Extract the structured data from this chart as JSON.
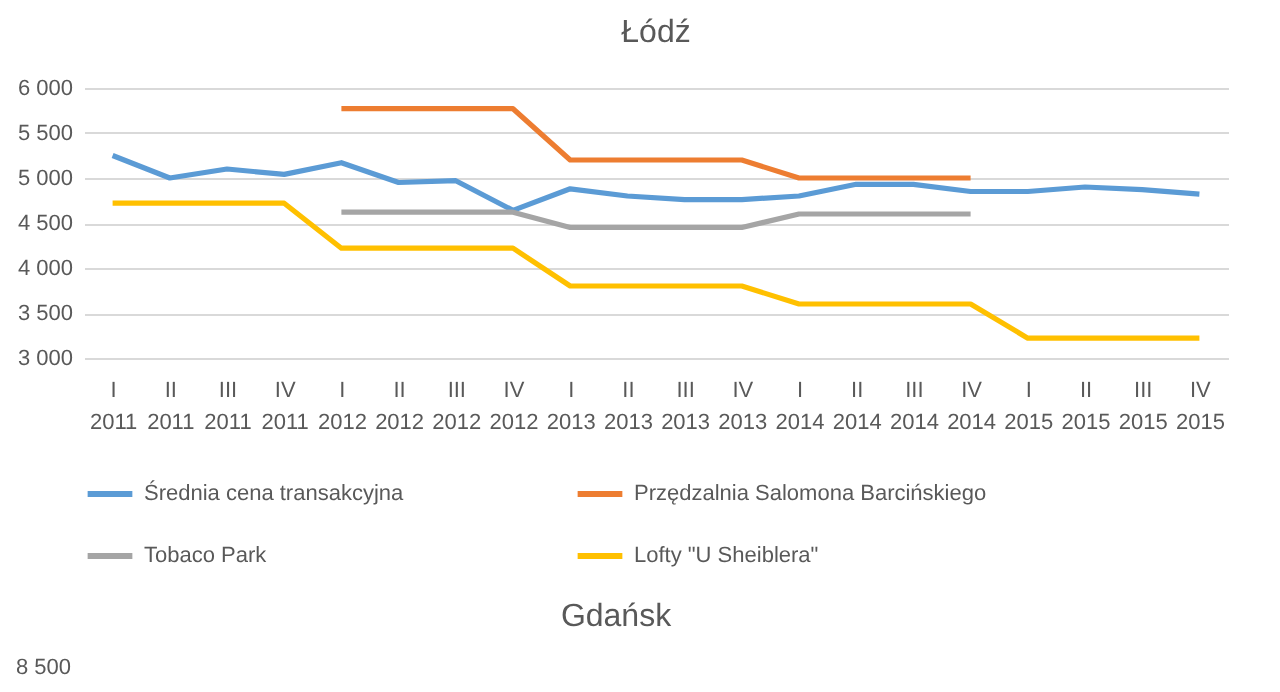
{
  "chart_data": [
    {
      "type": "line",
      "title": "Łódź",
      "categories": [
        "I 2011",
        "II 2011",
        "III 2011",
        "IV 2011",
        "I 2012",
        "II 2012",
        "III 2012",
        "IV 2012",
        "I 2013",
        "II 2013",
        "III 2013",
        "IV 2013",
        "I 2014",
        "II 2014",
        "III 2014",
        "IV 2014",
        "I 2015",
        "II 2015",
        "III 2015",
        "IV 2015"
      ],
      "series": [
        {
          "name": "Średnia cena transakcyjna",
          "color": "#5b9bd5",
          "values": [
            5250,
            5000,
            5100,
            5040,
            5170,
            4950,
            4970,
            4640,
            4880,
            4800,
            4760,
            4760,
            4800,
            4930,
            4930,
            4850,
            4850,
            4900,
            4870,
            4820
          ]
        },
        {
          "name": "Przędzalnia Salomona Barcińskiego",
          "color": "#ed7d31",
          "values": [
            null,
            null,
            null,
            null,
            5770,
            5770,
            5770,
            5770,
            5200,
            5200,
            5200,
            5200,
            5000,
            5000,
            5000,
            5000,
            null,
            null,
            null,
            null
          ]
        },
        {
          "name": "Tobaco Park",
          "color": "#a5a5a5",
          "values": [
            null,
            null,
            null,
            null,
            4620,
            4620,
            4620,
            4620,
            4450,
            4450,
            4450,
            4450,
            4600,
            4600,
            4600,
            4600,
            null,
            null,
            null,
            null
          ]
        },
        {
          "name": "Lofty \"U Sheiblera\"",
          "color": "#ffc000",
          "values": [
            4720,
            4720,
            4720,
            4720,
            4220,
            4220,
            4220,
            4220,
            3800,
            3800,
            3800,
            3800,
            3600,
            3600,
            3600,
            3600,
            3220,
            3220,
            3220,
            3220
          ]
        }
      ],
      "ylim": [
        3000,
        6000
      ],
      "yticks": [
        {
          "value": 3000,
          "label": "3 000"
        },
        {
          "value": 3500,
          "label": "3 500"
        },
        {
          "value": 4000,
          "label": "4 000"
        },
        {
          "value": 4500,
          "label": "4 500"
        },
        {
          "value": 5000,
          "label": "5 000"
        },
        {
          "value": 5500,
          "label": "5 500"
        },
        {
          "value": 6000,
          "label": "6 000"
        }
      ],
      "grid": "y",
      "legend": "bottom",
      "marker": "none",
      "line_style": "solid"
    },
    {
      "type": "other",
      "title": "Gdańsk",
      "annotations": [
        "8 500"
      ]
    }
  ]
}
